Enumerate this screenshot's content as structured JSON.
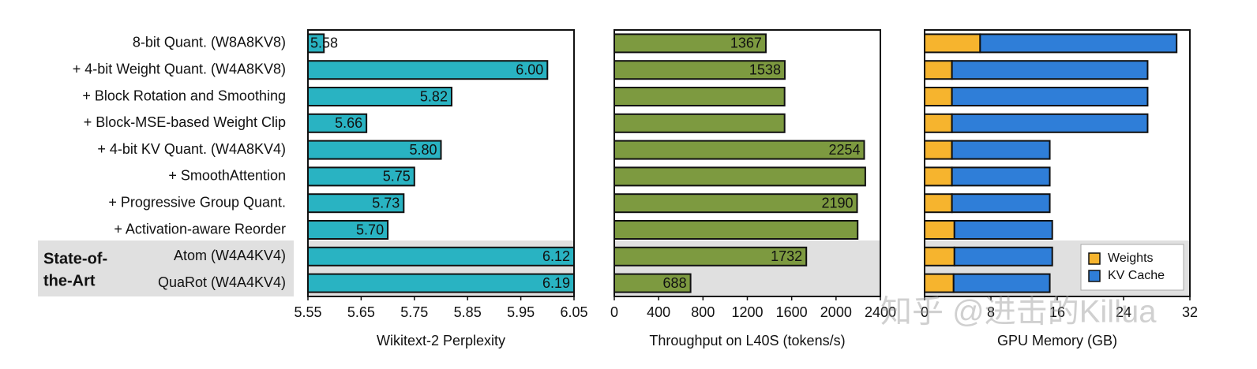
{
  "chart_data": [
    {
      "type": "hbar",
      "categories": [
        "8-bit Quant. (W8A8KV8)",
        "+ 4-bit Weight Quant. (W4A8KV8)",
        "+ Block Rotation and Smoothing",
        "+ Block-MSE-based Weight Clip",
        "+ 4-bit KV Quant. (W4A8KV4)",
        "+ SmoothAttention",
        "+ Progressive Group Quant.",
        "+ Activation-aware Reorder",
        "Atom (W4A4KV4)",
        "QuaRot (W4A4KV4)"
      ],
      "group_label": [
        "State-of-",
        "the-Art"
      ],
      "xlabel": "Wikitext-2 Perplexity",
      "xlim": [
        5.55,
        6.05
      ],
      "xticks": [
        5.55,
        5.65,
        5.75,
        5.85,
        5.95,
        6.05
      ],
      "color": "#29b3c2",
      "values": [
        5.58,
        6.0,
        5.82,
        5.66,
        5.8,
        5.75,
        5.73,
        5.7,
        6.12,
        6.19
      ],
      "value_labels": [
        "5.58",
        "6.00",
        "5.82",
        "5.66",
        "5.80",
        "5.75",
        "5.73",
        "5.70",
        "6.12",
        "6.19"
      ]
    },
    {
      "type": "hbar",
      "xlabel": "Throughput on L40S (tokens/s)",
      "xlim": [
        0,
        2400
      ],
      "xticks": [
        0,
        400,
        800,
        1200,
        1600,
        2000,
        2400
      ],
      "color": "#7d9a40",
      "values": [
        1367,
        1538,
        1536,
        1536,
        2254,
        2264,
        2190,
        2195,
        1732,
        688
      ],
      "value_labels": [
        "1367",
        "1538",
        null,
        null,
        "2254",
        null,
        "2190",
        null,
        "1732",
        "688"
      ]
    },
    {
      "type": "stacked_hbar",
      "xlabel": "GPU Memory (GB)",
      "xlim": [
        0,
        32
      ],
      "xticks": [
        0,
        8,
        16,
        24,
        32
      ],
      "legend": "lower right",
      "series": [
        {
          "name": "Weights",
          "color": "#f6b42e",
          "values": [
            6.7,
            3.3,
            3.3,
            3.3,
            3.3,
            3.3,
            3.3,
            3.6,
            3.6,
            3.5
          ]
        },
        {
          "name": "KV Cache",
          "color": "#2f7ed8",
          "values": [
            23.7,
            23.6,
            23.6,
            23.6,
            11.8,
            11.8,
            11.8,
            11.8,
            11.8,
            11.6
          ]
        }
      ]
    }
  ],
  "watermark": "知乎 @进击的Killua"
}
